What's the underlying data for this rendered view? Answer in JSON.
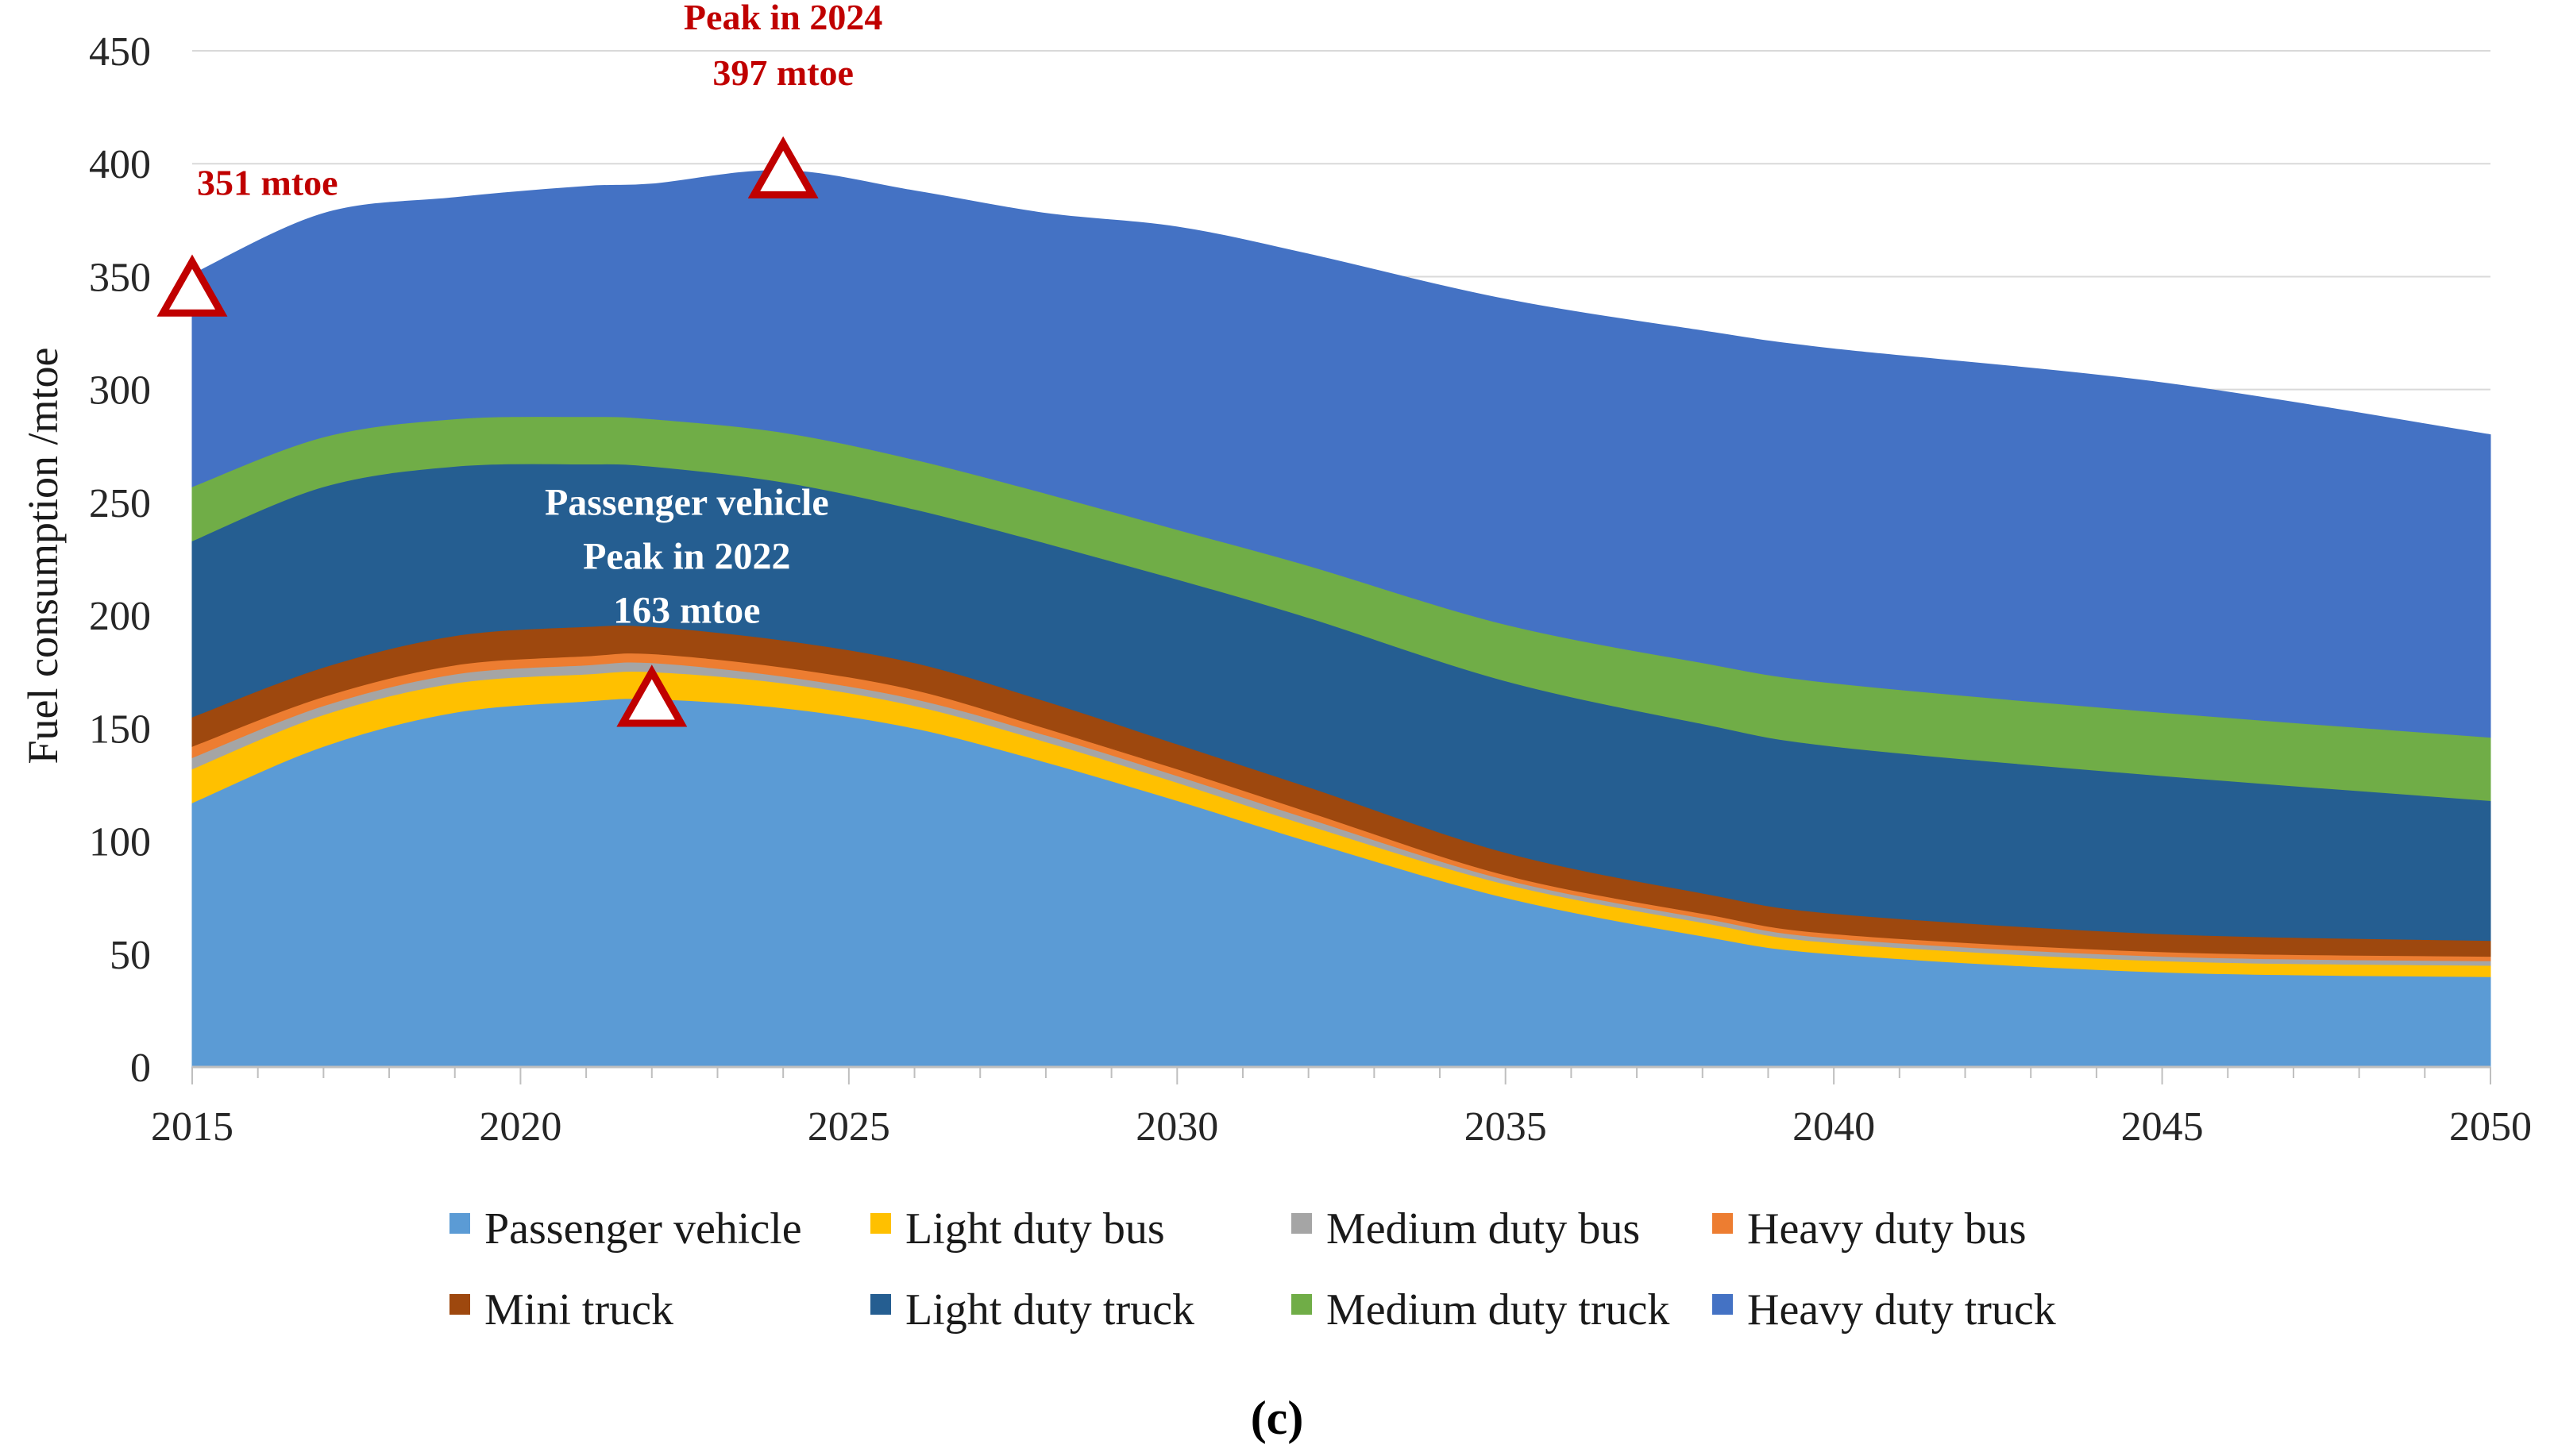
{
  "chart_data": {
    "type": "area",
    "stacked": true,
    "xlabel": "",
    "ylabel": "Fuel consumption  /mtoe",
    "xlim": [
      2015,
      2050
    ],
    "ylim": [
      0,
      450
    ],
    "xticks": [
      2015,
      2020,
      2025,
      2030,
      2035,
      2040,
      2045,
      2050
    ],
    "yticks": [
      0,
      50,
      100,
      150,
      200,
      250,
      300,
      350,
      400,
      450
    ],
    "grid": "horizontal",
    "legend_position": "bottom",
    "x": [
      2015,
      2017,
      2019,
      2021,
      2022,
      2024,
      2026,
      2028,
      2030,
      2032,
      2035,
      2038,
      2040,
      2045,
      2050
    ],
    "series": [
      {
        "name": "Passenger vehicle",
        "color": "#5b9bd5",
        "values": [
          117,
          142,
          157,
          162,
          163,
          159,
          150,
          135,
          118,
          100,
          75,
          58,
          50,
          42,
          40
        ]
      },
      {
        "name": "Light duty bus",
        "color": "#ffc000",
        "values": [
          15,
          14,
          13,
          12,
          12,
          11,
          10,
          9,
          8,
          7,
          6,
          6,
          5,
          5,
          5
        ]
      },
      {
        "name": "Medium duty bus",
        "color": "#a5a5a5",
        "values": [
          5,
          4,
          4,
          4,
          4,
          3,
          3,
          3,
          3,
          3,
          2,
          2,
          2,
          2,
          2
        ]
      },
      {
        "name": "Heavy duty bus",
        "color": "#ed7d31",
        "values": [
          5,
          4,
          4,
          4,
          4,
          4,
          4,
          3,
          3,
          3,
          2,
          2,
          2,
          2,
          2
        ]
      },
      {
        "name": "Mini truck",
        "color": "#9e480e",
        "values": [
          13,
          13,
          13,
          13,
          12,
          12,
          12,
          12,
          11,
          11,
          10,
          9,
          9,
          8,
          7
        ]
      },
      {
        "name": "Light duty truck",
        "color": "#255e91",
        "values": [
          78,
          80,
          75,
          72,
          71,
          70,
          68,
          70,
          73,
          75,
          76,
          75,
          74,
          70,
          62
        ]
      },
      {
        "name": "Medium duty truck",
        "color": "#70ad47",
        "values": [
          24,
          22,
          21,
          21,
          21,
          22,
          22,
          22,
          22,
          23,
          25,
          27,
          28,
          28,
          28
        ]
      },
      {
        "name": "Heavy duty truck",
        "color": "#4472c4",
        "values": [
          94,
          99,
          98,
          102,
          104,
          116,
          119,
          124,
          134,
          138,
          144,
          147,
          148,
          146,
          134
        ]
      }
    ],
    "annotations": [
      {
        "lines": [
          "351 mtoe"
        ],
        "x": 2015,
        "y": 351,
        "style": "red"
      },
      {
        "lines": [
          "Peak in 2024",
          "397 mtoe"
        ],
        "x": 2024,
        "y": 397,
        "style": "red"
      },
      {
        "lines": [
          "Passenger vehicle",
          "Peak in 2022",
          "163 mtoe"
        ],
        "x": 2022,
        "y": 163,
        "style": "white"
      }
    ],
    "caption": "(c)"
  }
}
